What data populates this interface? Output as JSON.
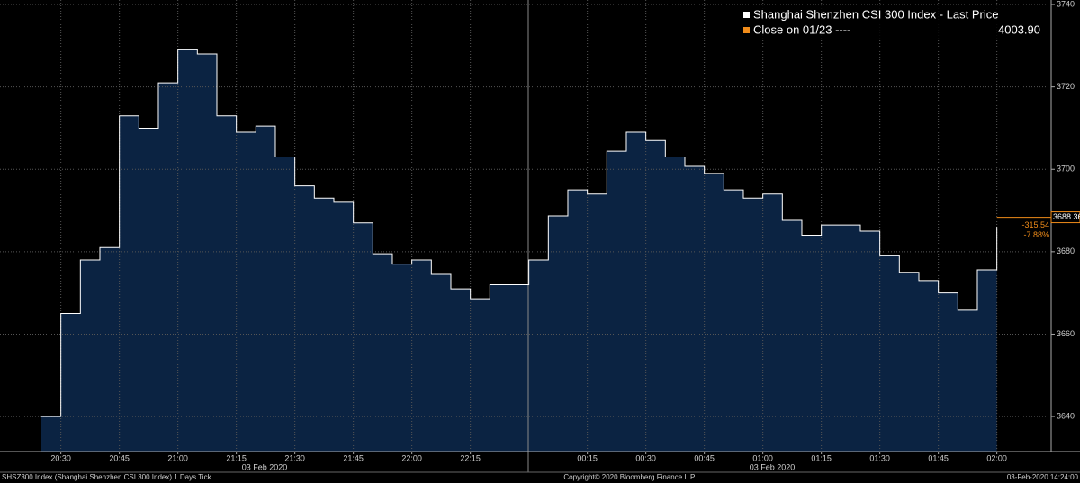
{
  "chart_data": {
    "type": "line",
    "series": [
      {
        "name": "Shanghai Shenzhen CSI 300 Index - Last Price",
        "color": "#ffffff",
        "fill": "#0b2342",
        "x": [
          "20:25",
          "20:30",
          "20:35",
          "20:40",
          "20:45",
          "20:50",
          "20:55",
          "21:00",
          "21:05",
          "21:10",
          "21:15",
          "21:20",
          "21:25",
          "21:30",
          "21:35",
          "21:40",
          "21:45",
          "21:50",
          "21:55",
          "22:00",
          "22:05",
          "22:10",
          "22:15",
          "22:20",
          "22:25",
          "00:00",
          "00:05",
          "00:10",
          "00:15",
          "00:20",
          "00:25",
          "00:30",
          "00:35",
          "00:40",
          "00:45",
          "00:50",
          "00:55",
          "01:00",
          "01:05",
          "01:10",
          "01:15",
          "01:20",
          "01:25",
          "01:30",
          "01:35",
          "01:40",
          "01:45",
          "01:50",
          "01:55",
          "02:00"
        ],
        "values": [
          3640,
          3665,
          3678,
          3681,
          3713,
          3710,
          3721,
          3729,
          3728,
          3713,
          3709,
          3710.5,
          3703,
          3696,
          3693,
          3692,
          3687,
          3679.5,
          3677,
          3678,
          3674.5,
          3671,
          3668.6,
          3672,
          3672,
          3678,
          3688.7,
          3695,
          3694,
          3704.4,
          3709,
          3707,
          3703,
          3700.7,
          3699,
          3695,
          3693,
          3694,
          3687.6,
          3684,
          3686.5,
          3686.5,
          3685,
          3679,
          3675,
          3673,
          3670,
          3665.8,
          3675.6,
          3686
        ]
      }
    ],
    "legend": {
      "close_label": "Close on 01/23 ----",
      "close_value": "4003.90"
    },
    "last_price": 3688.36,
    "change": -315.54,
    "change_percent": "-7.88%",
    "ylim": [
      3631.5,
      3741.1
    ],
    "yticks": [
      3640,
      3660,
      3680,
      3700,
      3720,
      3740
    ],
    "xticks": [
      "20:30",
      "20:45",
      "21:00",
      "21:15",
      "21:30",
      "21:45",
      "22:00",
      "22:15",
      "00:15",
      "00:30",
      "00:45",
      "01:00",
      "01:15",
      "01:30",
      "01:45",
      "02:00"
    ],
    "x_date_labels": [
      "03 Feb 2020",
      "03 Feb 2020"
    ],
    "grid": true,
    "footer": {
      "left": "SHSZ300 Index (Shanghai Shenzhen CSI 300 Index) 1 Days  Tick",
      "center": "Copyright© 2020 Bloomberg Finance L.P.",
      "right": "03-Feb-2020 14:24:00"
    }
  }
}
